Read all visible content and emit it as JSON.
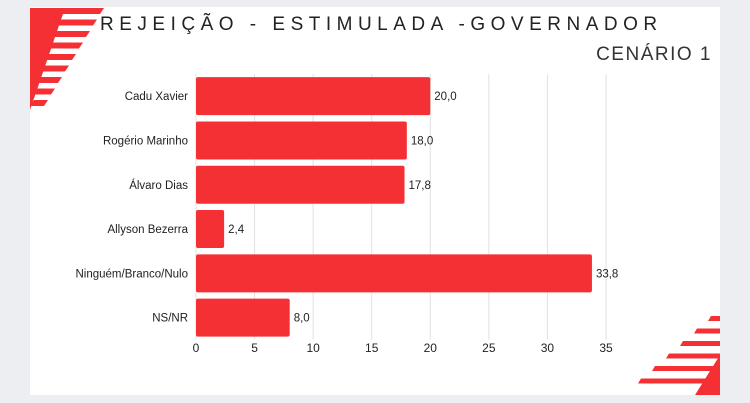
{
  "chart_data": {
    "type": "bar",
    "orientation": "horizontal",
    "title": "REJEIÇÃO - ESTIMULADA -GOVERNADOR",
    "subtitle": "CENÁRIO 1",
    "categories": [
      "Cadu Xavier",
      "Rogério Marinho",
      "Álvaro Dias",
      "Allyson Bezerra",
      "Ninguém/Branco/Nulo",
      "NS/NR"
    ],
    "values": [
      20.0,
      18.0,
      17.8,
      2.4,
      33.8,
      8.0
    ],
    "value_labels": [
      "20,0",
      "18,0",
      "17,8",
      "2,4",
      "33,8",
      "8,0"
    ],
    "xticks": [
      0,
      5,
      10,
      15,
      20,
      25,
      30,
      35
    ],
    "xlim": [
      0,
      35
    ],
    "grid": true,
    "bar_color": "#f53034"
  }
}
